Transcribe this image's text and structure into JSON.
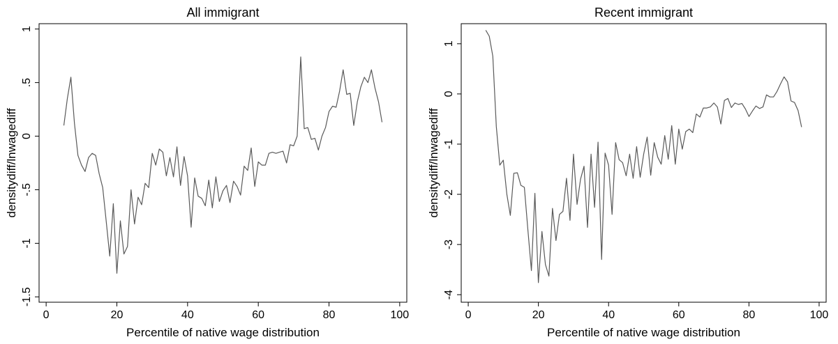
{
  "chart_data": [
    {
      "type": "line",
      "title": "All immigrant",
      "xlabel": "Percentile of native wage distribution",
      "ylabel": "densitydiff/lnwagediff",
      "xlim": [
        -2,
        102
      ],
      "ylim": [
        -1.55,
        1.05
      ],
      "xticks": [
        0,
        20,
        40,
        60,
        80,
        100
      ],
      "xtick_labels": [
        "0",
        "20",
        "40",
        "60",
        "80",
        "100"
      ],
      "yticks": [
        -1.5,
        -1,
        -0.5,
        0,
        0.5,
        1
      ],
      "ytick_labels": [
        "-1.5",
        "-1",
        "-.5",
        "0",
        ".5",
        "1"
      ],
      "series_color": "#595959",
      "series": [
        {
          "x": [
            5,
            6,
            7,
            8,
            9,
            10,
            11,
            12,
            13,
            14,
            15,
            16,
            17,
            18,
            19,
            20,
            21,
            22,
            23,
            24,
            25,
            26,
            27,
            28,
            29,
            30,
            31,
            32,
            33,
            34,
            35,
            36,
            37,
            38,
            39,
            40,
            41,
            42,
            43,
            44,
            45,
            46,
            47,
            48,
            49,
            50,
            51,
            52,
            53,
            54,
            55,
            56,
            57,
            58,
            59,
            60,
            61,
            62,
            63,
            64,
            65,
            66,
            67,
            68,
            69,
            70,
            71,
            72,
            73,
            74,
            75,
            76,
            77,
            78,
            79,
            80,
            81,
            82,
            83,
            84,
            85,
            86,
            87,
            88,
            89,
            90,
            91,
            92,
            93,
            94,
            95
          ],
          "y": [
            0.1,
            0.35,
            0.55,
            0.12,
            -0.18,
            -0.27,
            -0.33,
            -0.2,
            -0.16,
            -0.18,
            -0.35,
            -0.48,
            -0.8,
            -1.12,
            -0.63,
            -1.28,
            -0.79,
            -1.1,
            -1.03,
            -0.5,
            -0.82,
            -0.57,
            -0.64,
            -0.44,
            -0.48,
            -0.16,
            -0.27,
            -0.12,
            -0.15,
            -0.37,
            -0.2,
            -0.38,
            -0.1,
            -0.46,
            -0.19,
            -0.37,
            -0.85,
            -0.39,
            -0.56,
            -0.58,
            -0.65,
            -0.41,
            -0.67,
            -0.38,
            -0.61,
            -0.51,
            -0.46,
            -0.62,
            -0.42,
            -0.47,
            -0.55,
            -0.28,
            -0.32,
            -0.11,
            -0.47,
            -0.24,
            -0.27,
            -0.27,
            -0.16,
            -0.15,
            -0.16,
            -0.15,
            -0.14,
            -0.25,
            -0.08,
            -0.09,
            0.0,
            0.74,
            0.07,
            0.08,
            -0.03,
            -0.02,
            -0.13,
            0.0,
            0.08,
            0.23,
            0.28,
            0.27,
            0.42,
            0.62,
            0.39,
            0.4,
            0.1,
            0.32,
            0.46,
            0.55,
            0.5,
            0.62,
            0.45,
            0.32,
            0.13
          ]
        }
      ]
    },
    {
      "type": "line",
      "title": "Recent immigrant",
      "xlabel": "Percentile of native wage distribution",
      "ylabel": "densitydiff/lnwagediff",
      "xlim": [
        -2,
        102
      ],
      "ylim": [
        -4.15,
        1.4
      ],
      "xticks": [
        0,
        20,
        40,
        60,
        80,
        100
      ],
      "xtick_labels": [
        "0",
        "20",
        "40",
        "60",
        "80",
        "100"
      ],
      "yticks": [
        -4,
        -3,
        -2,
        -1,
        0,
        1
      ],
      "ytick_labels": [
        "-4",
        "-3",
        "-2",
        "-1",
        "0",
        "1"
      ],
      "series_color": "#595959",
      "series": [
        {
          "x": [
            5,
            6,
            7,
            8,
            9,
            10,
            11,
            12,
            13,
            14,
            15,
            16,
            17,
            18,
            19,
            20,
            21,
            22,
            23,
            24,
            25,
            26,
            27,
            28,
            29,
            30,
            31,
            32,
            33,
            34,
            35,
            36,
            37,
            38,
            39,
            40,
            41,
            42,
            43,
            44,
            45,
            46,
            47,
            48,
            49,
            50,
            51,
            52,
            53,
            54,
            55,
            56,
            57,
            58,
            59,
            60,
            61,
            62,
            63,
            64,
            65,
            66,
            67,
            68,
            69,
            70,
            71,
            72,
            73,
            74,
            75,
            76,
            77,
            78,
            79,
            80,
            81,
            82,
            83,
            84,
            85,
            86,
            87,
            88,
            89,
            90,
            91,
            92,
            93,
            94,
            95
          ],
          "y": [
            1.27,
            1.15,
            0.75,
            -0.65,
            -1.42,
            -1.32,
            -2.0,
            -2.42,
            -1.58,
            -1.57,
            -1.82,
            -1.86,
            -2.7,
            -3.52,
            -1.98,
            -3.76,
            -2.74,
            -3.4,
            -3.63,
            -2.28,
            -2.92,
            -2.4,
            -2.34,
            -1.68,
            -2.52,
            -1.2,
            -2.2,
            -1.7,
            -1.44,
            -2.66,
            -1.2,
            -2.26,
            -0.96,
            -3.3,
            -1.18,
            -1.42,
            -2.4,
            -0.97,
            -1.31,
            -1.37,
            -1.63,
            -1.2,
            -1.68,
            -1.05,
            -1.66,
            -1.2,
            -0.86,
            -1.62,
            -0.97,
            -1.26,
            -1.4,
            -0.83,
            -1.3,
            -0.63,
            -1.4,
            -0.7,
            -1.1,
            -0.75,
            -0.7,
            -0.77,
            -0.4,
            -0.46,
            -0.28,
            -0.28,
            -0.26,
            -0.18,
            -0.26,
            -0.6,
            -0.13,
            -0.09,
            -0.27,
            -0.18,
            -0.21,
            -0.19,
            -0.3,
            -0.45,
            -0.34,
            -0.24,
            -0.29,
            -0.26,
            -0.02,
            -0.06,
            -0.06,
            0.05,
            0.2,
            0.34,
            0.24,
            -0.14,
            -0.17,
            -0.33,
            -0.66
          ]
        }
      ]
    }
  ]
}
